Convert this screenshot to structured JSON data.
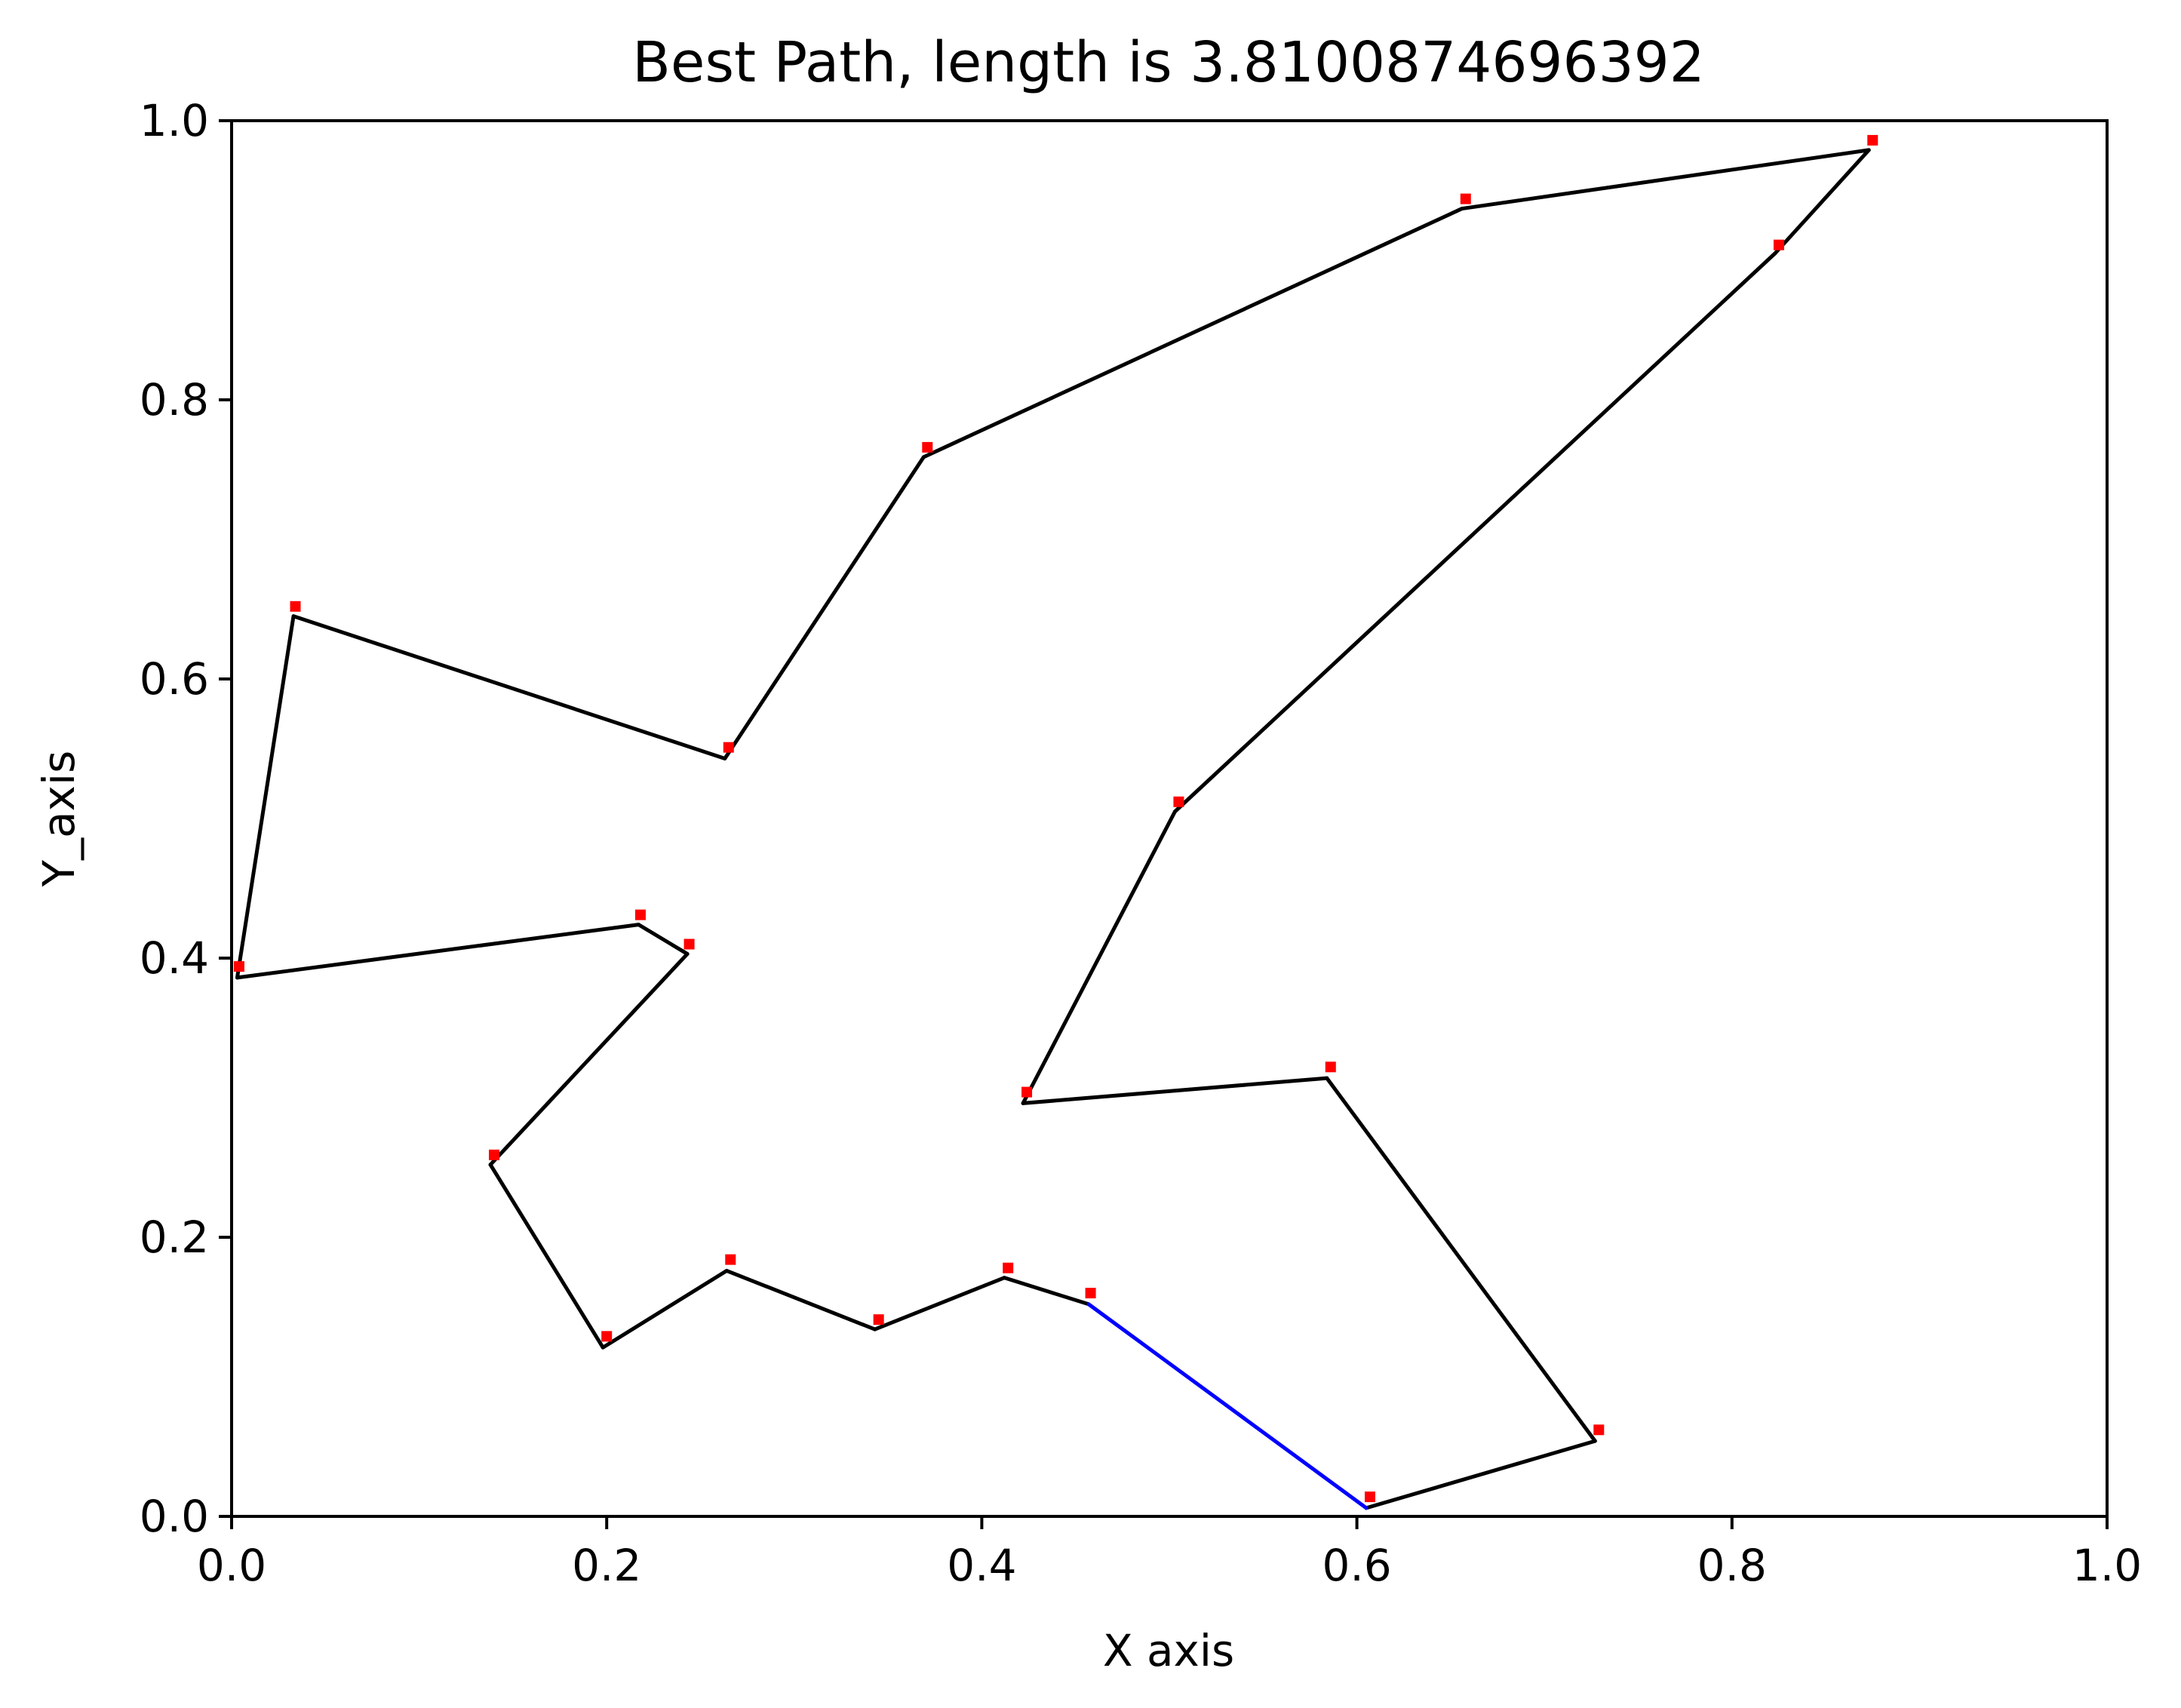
{
  "chart_data": {
    "type": "line",
    "title": "Best Path, length is 3.8100874696392",
    "xlabel": "X axis",
    "ylabel": "Y_axis",
    "xlim": [
      0.0,
      1.0
    ],
    "ylim": [
      0.0,
      1.0
    ],
    "xticks": [
      "0.0",
      "0.2",
      "0.4",
      "0.6",
      "0.8",
      "1.0"
    ],
    "yticks": [
      "0.0",
      "0.2",
      "0.4",
      "0.6",
      "0.8",
      "1.0"
    ],
    "grid": false,
    "path_color": "#000000",
    "closing_segment_color": "#0000ff",
    "point_color": "#ff0000",
    "path": [
      [
        0.457,
        0.152
      ],
      [
        0.412,
        0.171
      ],
      [
        0.343,
        0.134
      ],
      [
        0.264,
        0.176
      ],
      [
        0.198,
        0.121
      ],
      [
        0.138,
        0.252
      ],
      [
        0.243,
        0.403
      ],
      [
        0.217,
        0.424
      ],
      [
        0.003,
        0.386
      ],
      [
        0.033,
        0.645
      ],
      [
        0.263,
        0.543
      ],
      [
        0.369,
        0.759
      ],
      [
        0.656,
        0.937
      ],
      [
        0.873,
        0.979
      ],
      [
        0.823,
        0.905
      ],
      [
        0.503,
        0.505
      ],
      [
        0.422,
        0.296
      ],
      [
        0.584,
        0.314
      ],
      [
        0.727,
        0.054
      ],
      [
        0.605,
        0.006
      ]
    ],
    "points": [
      [
        0.458,
        0.16
      ],
      [
        0.414,
        0.178
      ],
      [
        0.345,
        0.141
      ],
      [
        0.266,
        0.184
      ],
      [
        0.2,
        0.129
      ],
      [
        0.14,
        0.259
      ],
      [
        0.244,
        0.41
      ],
      [
        0.218,
        0.431
      ],
      [
        0.004,
        0.394
      ],
      [
        0.034,
        0.652
      ],
      [
        0.265,
        0.551
      ],
      [
        0.371,
        0.766
      ],
      [
        0.658,
        0.944
      ],
      [
        0.875,
        0.986
      ],
      [
        0.825,
        0.911
      ],
      [
        0.505,
        0.512
      ],
      [
        0.424,
        0.304
      ],
      [
        0.586,
        0.322
      ],
      [
        0.729,
        0.062
      ],
      [
        0.607,
        0.014
      ]
    ]
  }
}
